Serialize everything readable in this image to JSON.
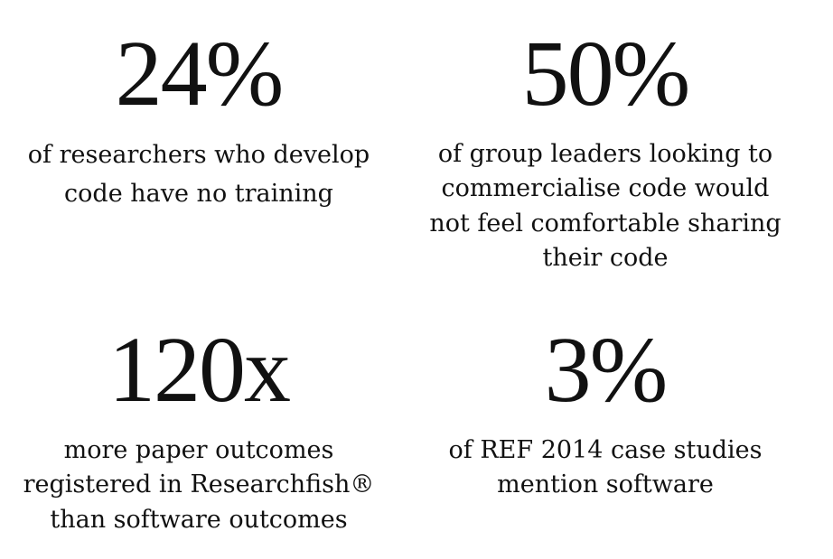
{
  "stats": [
    {
      "value": "24%",
      "lines": [
        "of researchers who develop",
        "code have no training"
      ]
    },
    {
      "value": "50%",
      "lines": [
        "of group leaders looking to",
        "commercialise code would",
        "not feel comfortable sharing",
        "their code"
      ]
    },
    {
      "value": "120x",
      "lines": [
        "more paper outcomes",
        "registered in Researchfish®",
        "than software outcomes"
      ]
    },
    {
      "value": "3%",
      "lines": [
        "of REF 2014 case studies",
        "mention software"
      ]
    }
  ]
}
